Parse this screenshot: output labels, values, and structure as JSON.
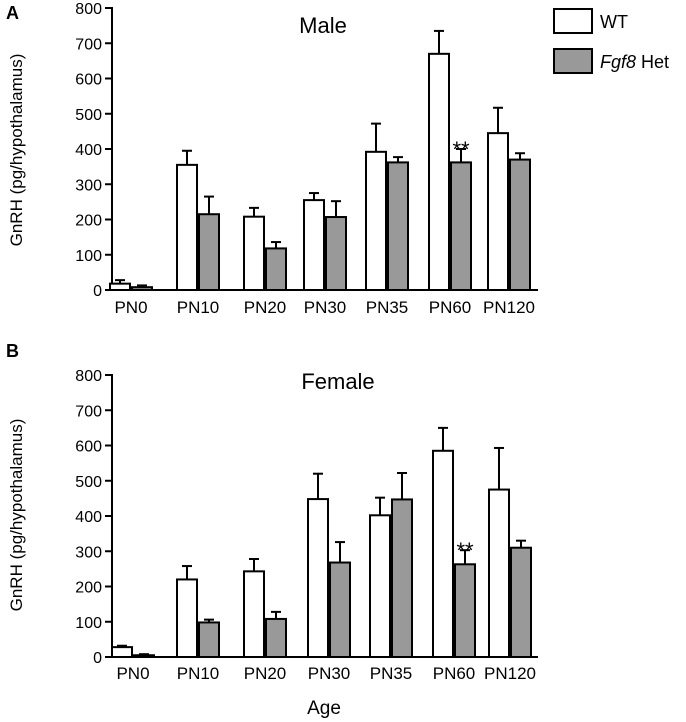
{
  "figure": {
    "xlabel": "Age",
    "legend": [
      {
        "label": "WT",
        "italic_part": "",
        "rest": "WT",
        "color": "#ffffff"
      },
      {
        "label": "Fgf8 Het",
        "italic_part": "Fgf8",
        "rest": " Het",
        "color": "#999999"
      }
    ],
    "colors": {
      "wt": "#ffffff",
      "het": "#999999",
      "stroke": "#000000"
    }
  },
  "chart_data": [
    {
      "type": "bar",
      "panel": "A",
      "title": "Male",
      "xlabel": "",
      "ylabel": "GnRH (pg/hypothalamus)",
      "ylim": [
        0,
        800
      ],
      "yticks": [
        0,
        100,
        200,
        300,
        400,
        500,
        600,
        700,
        800
      ],
      "categories": [
        "PN0",
        "PN10",
        "PN20",
        "PN30",
        "PN35",
        "PN60",
        "PN120"
      ],
      "series": [
        {
          "name": "WT",
          "values": [
            18,
            355,
            208,
            255,
            392,
            670,
            445
          ],
          "errors": [
            10,
            40,
            25,
            20,
            80,
            65,
            72
          ]
        },
        {
          "name": "Fgf8 Het",
          "values": [
            8,
            215,
            118,
            207,
            362,
            362,
            370
          ],
          "errors": [
            5,
            50,
            18,
            45,
            15,
            38,
            18
          ]
        }
      ],
      "annotations": [
        {
          "category": "PN60",
          "series": "Fgf8 Het",
          "text": "**"
        }
      ]
    },
    {
      "type": "bar",
      "panel": "B",
      "title": "Female",
      "xlabel": "Age",
      "ylabel": "GnRH (pg/hypothalamus)",
      "ylim": [
        0,
        800
      ],
      "yticks": [
        0,
        100,
        200,
        300,
        400,
        500,
        600,
        700,
        800
      ],
      "categories": [
        "PN0",
        "PN10",
        "PN20",
        "PN30",
        "PN35",
        "PN60",
        "PN120"
      ],
      "series": [
        {
          "name": "WT",
          "values": [
            28,
            220,
            243,
            448,
            402,
            585,
            475
          ],
          "errors": [
            4,
            38,
            35,
            72,
            50,
            65,
            118
          ]
        },
        {
          "name": "Fgf8 Het",
          "values": [
            5,
            98,
            108,
            268,
            447,
            263,
            310
          ],
          "errors": [
            3,
            8,
            20,
            58,
            75,
            40,
            20
          ]
        }
      ],
      "annotations": [
        {
          "category": "PN60",
          "series": "Fgf8 Het",
          "text": "**"
        }
      ]
    }
  ]
}
